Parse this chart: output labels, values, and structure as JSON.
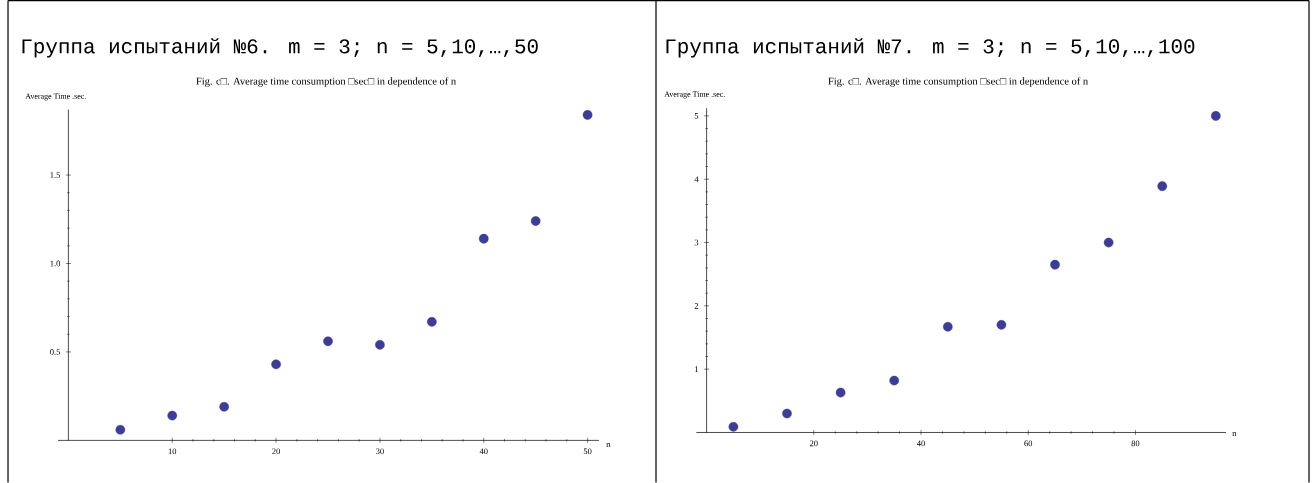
{
  "chart_data": [
    {
      "type": "scatter",
      "title": "Группа испытаний №6. m = 3; n = 5,10,…,50",
      "subtitle": "Fig. c□. Average time consumption □sec□ in dependence of n",
      "ylabel": "Average Time .sec.",
      "xlabel": "n",
      "marker": "circle",
      "x": [
        5,
        10,
        15,
        20,
        25,
        30,
        35,
        40,
        45,
        50
      ],
      "series": [
        {
          "color": "#3c3c9a",
          "values": [
            0.06,
            0.14,
            0.19,
            0.43,
            0.56,
            0.54,
            0.67,
            1.14,
            1.24,
            1.84
          ]
        }
      ],
      "xlim": [
        -1,
        51.1
      ],
      "ylim": [
        0,
        1.87
      ],
      "xticks": [
        10,
        20,
        30,
        40,
        50
      ],
      "yticks": [
        0.5,
        {
          "value": 1,
          "label": "1.0"
        },
        1.5
      ]
    },
    {
      "type": "scatter",
      "title": "Группа испытаний №7. m = 3; n = 5,10,…,100",
      "subtitle": "Fig. c□. Average time consumption □sec□ in dependence of n",
      "ylabel": "Average Time .sec.",
      "xlabel": "n",
      "marker": "circle",
      "x": [
        5,
        15,
        25,
        35,
        45,
        55,
        65,
        75,
        85,
        95
      ],
      "series": [
        {
          "color": "#3c3c9a",
          "values": [
            0.09,
            0.3,
            0.63,
            0.82,
            1.67,
            1.7,
            2.65,
            3.0,
            3.89,
            5.0
          ]
        }
      ],
      "xlim": [
        -1.9,
        96.9
      ],
      "ylim": [
        0,
        5.12
      ],
      "xticks": [
        20,
        40,
        60,
        80
      ],
      "yticks": [
        1,
        2,
        3,
        4,
        5
      ]
    }
  ]
}
